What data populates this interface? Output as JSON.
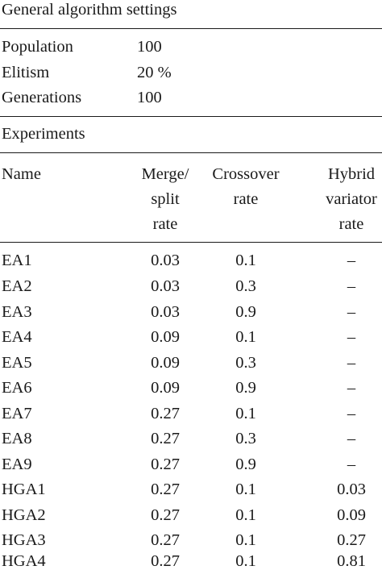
{
  "general": {
    "heading": "General algorithm settings",
    "settings": [
      {
        "label": "Population",
        "value": "100"
      },
      {
        "label": "Elitism",
        "value": "20 %"
      },
      {
        "label": "Generations",
        "value": "100"
      }
    ]
  },
  "experiments": {
    "heading": "Experiments",
    "columns": {
      "name": [
        "Name"
      ],
      "merge": [
        "Merge/",
        "split",
        "rate"
      ],
      "crossover": [
        "Crossover",
        "rate"
      ],
      "hybrid": [
        "Hybrid",
        "variator",
        "rate"
      ]
    },
    "rows": [
      {
        "name": "EA1",
        "merge": "0.03",
        "crossover": "0.1",
        "hybrid": "–"
      },
      {
        "name": "EA2",
        "merge": "0.03",
        "crossover": "0.3",
        "hybrid": "–"
      },
      {
        "name": "EA3",
        "merge": "0.03",
        "crossover": "0.9",
        "hybrid": "–"
      },
      {
        "name": "EA4",
        "merge": "0.09",
        "crossover": "0.1",
        "hybrid": "–"
      },
      {
        "name": "EA5",
        "merge": "0.09",
        "crossover": "0.3",
        "hybrid": "–"
      },
      {
        "name": "EA6",
        "merge": "0.09",
        "crossover": "0.9",
        "hybrid": "–"
      },
      {
        "name": "EA7",
        "merge": "0.27",
        "crossover": "0.1",
        "hybrid": "–"
      },
      {
        "name": "EA8",
        "merge": "0.27",
        "crossover": "0.3",
        "hybrid": "–"
      },
      {
        "name": "EA9",
        "merge": "0.27",
        "crossover": "0.9",
        "hybrid": "–"
      },
      {
        "name": "HGA1",
        "merge": "0.27",
        "crossover": "0.1",
        "hybrid": "0.03"
      },
      {
        "name": "HGA2",
        "merge": "0.27",
        "crossover": "0.1",
        "hybrid": "0.09"
      },
      {
        "name": "HGA3",
        "merge": "0.27",
        "crossover": "0.1",
        "hybrid": "0.27"
      },
      {
        "name": "HGA4",
        "merge": "0.27",
        "crossover": "0.1",
        "hybrid": "0.81"
      }
    ]
  }
}
